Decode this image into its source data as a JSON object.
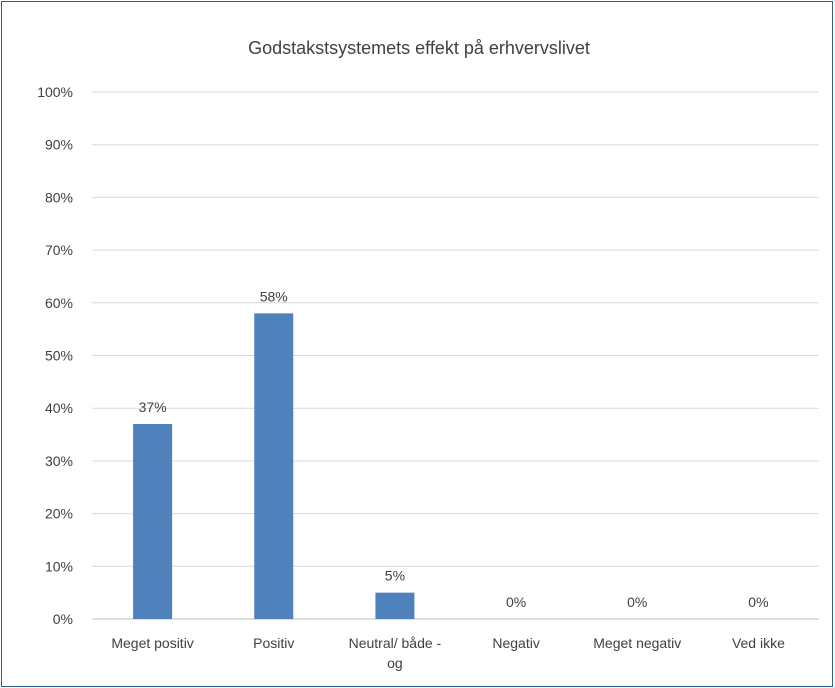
{
  "chart_data": {
    "type": "bar",
    "title": "Godstakstsystemets effekt på erhvervslivet",
    "categories": [
      "Meget positiv",
      "Positiv",
      "Neutral/ både - og",
      "Negativ",
      "Meget negativ",
      "Ved ikke"
    ],
    "category_label_lines": [
      [
        "Meget positiv"
      ],
      [
        "Positiv"
      ],
      [
        "Neutral/ både -",
        "og"
      ],
      [
        "Negativ"
      ],
      [
        "Meget negativ"
      ],
      [
        "Ved ikke"
      ]
    ],
    "values": [
      37,
      58,
      5,
      0,
      0,
      0
    ],
    "data_labels": [
      "37%",
      "58%",
      "5%",
      "0%",
      "0%",
      "0%"
    ],
    "ylim": [
      0,
      100
    ],
    "yticks": [
      0,
      10,
      20,
      30,
      40,
      50,
      60,
      70,
      80,
      90,
      100
    ],
    "ytick_labels": [
      "0%",
      "10%",
      "20%",
      "30%",
      "40%",
      "50%",
      "60%",
      "70%",
      "80%",
      "90%",
      "100%"
    ],
    "bar_color": "#4f81bd",
    "grid": true,
    "legend": "none"
  }
}
